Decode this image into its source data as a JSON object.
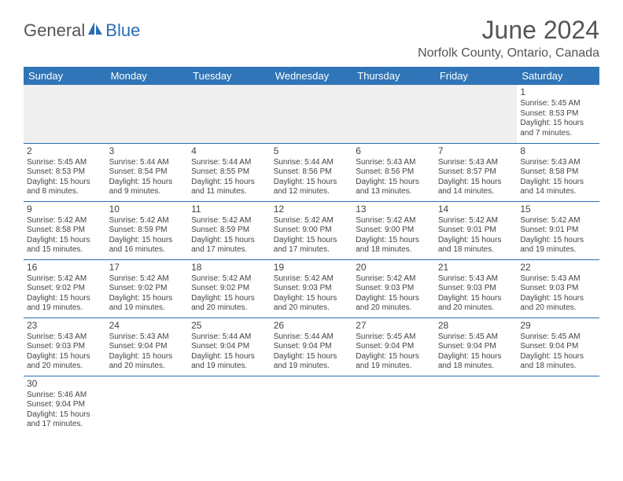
{
  "logo": {
    "text_general": "General",
    "text_blue": "Blue"
  },
  "title": "June 2024",
  "location": "Norfolk County, Ontario, Canada",
  "colors": {
    "header_bg": "#3075b7",
    "header_text": "#ffffff",
    "border": "#2a6db3",
    "shaded_bg": "#efefef",
    "text": "#444444"
  },
  "weekdays": [
    "Sunday",
    "Monday",
    "Tuesday",
    "Wednesday",
    "Thursday",
    "Friday",
    "Saturday"
  ],
  "weeks": [
    [
      null,
      null,
      null,
      null,
      null,
      null,
      {
        "n": "1",
        "sr": "Sunrise: 5:45 AM",
        "ss": "Sunset: 8:53 PM",
        "dl": "Daylight: 15 hours and 7 minutes."
      }
    ],
    [
      {
        "n": "2",
        "sr": "Sunrise: 5:45 AM",
        "ss": "Sunset: 8:53 PM",
        "dl": "Daylight: 15 hours and 8 minutes."
      },
      {
        "n": "3",
        "sr": "Sunrise: 5:44 AM",
        "ss": "Sunset: 8:54 PM",
        "dl": "Daylight: 15 hours and 9 minutes."
      },
      {
        "n": "4",
        "sr": "Sunrise: 5:44 AM",
        "ss": "Sunset: 8:55 PM",
        "dl": "Daylight: 15 hours and 11 minutes."
      },
      {
        "n": "5",
        "sr": "Sunrise: 5:44 AM",
        "ss": "Sunset: 8:56 PM",
        "dl": "Daylight: 15 hours and 12 minutes."
      },
      {
        "n": "6",
        "sr": "Sunrise: 5:43 AM",
        "ss": "Sunset: 8:56 PM",
        "dl": "Daylight: 15 hours and 13 minutes."
      },
      {
        "n": "7",
        "sr": "Sunrise: 5:43 AM",
        "ss": "Sunset: 8:57 PM",
        "dl": "Daylight: 15 hours and 14 minutes."
      },
      {
        "n": "8",
        "sr": "Sunrise: 5:43 AM",
        "ss": "Sunset: 8:58 PM",
        "dl": "Daylight: 15 hours and 14 minutes."
      }
    ],
    [
      {
        "n": "9",
        "sr": "Sunrise: 5:42 AM",
        "ss": "Sunset: 8:58 PM",
        "dl": "Daylight: 15 hours and 15 minutes."
      },
      {
        "n": "10",
        "sr": "Sunrise: 5:42 AM",
        "ss": "Sunset: 8:59 PM",
        "dl": "Daylight: 15 hours and 16 minutes."
      },
      {
        "n": "11",
        "sr": "Sunrise: 5:42 AM",
        "ss": "Sunset: 8:59 PM",
        "dl": "Daylight: 15 hours and 17 minutes."
      },
      {
        "n": "12",
        "sr": "Sunrise: 5:42 AM",
        "ss": "Sunset: 9:00 PM",
        "dl": "Daylight: 15 hours and 17 minutes."
      },
      {
        "n": "13",
        "sr": "Sunrise: 5:42 AM",
        "ss": "Sunset: 9:00 PM",
        "dl": "Daylight: 15 hours and 18 minutes."
      },
      {
        "n": "14",
        "sr": "Sunrise: 5:42 AM",
        "ss": "Sunset: 9:01 PM",
        "dl": "Daylight: 15 hours and 18 minutes."
      },
      {
        "n": "15",
        "sr": "Sunrise: 5:42 AM",
        "ss": "Sunset: 9:01 PM",
        "dl": "Daylight: 15 hours and 19 minutes."
      }
    ],
    [
      {
        "n": "16",
        "sr": "Sunrise: 5:42 AM",
        "ss": "Sunset: 9:02 PM",
        "dl": "Daylight: 15 hours and 19 minutes."
      },
      {
        "n": "17",
        "sr": "Sunrise: 5:42 AM",
        "ss": "Sunset: 9:02 PM",
        "dl": "Daylight: 15 hours and 19 minutes."
      },
      {
        "n": "18",
        "sr": "Sunrise: 5:42 AM",
        "ss": "Sunset: 9:02 PM",
        "dl": "Daylight: 15 hours and 20 minutes."
      },
      {
        "n": "19",
        "sr": "Sunrise: 5:42 AM",
        "ss": "Sunset: 9:03 PM",
        "dl": "Daylight: 15 hours and 20 minutes."
      },
      {
        "n": "20",
        "sr": "Sunrise: 5:42 AM",
        "ss": "Sunset: 9:03 PM",
        "dl": "Daylight: 15 hours and 20 minutes."
      },
      {
        "n": "21",
        "sr": "Sunrise: 5:43 AM",
        "ss": "Sunset: 9:03 PM",
        "dl": "Daylight: 15 hours and 20 minutes."
      },
      {
        "n": "22",
        "sr": "Sunrise: 5:43 AM",
        "ss": "Sunset: 9:03 PM",
        "dl": "Daylight: 15 hours and 20 minutes."
      }
    ],
    [
      {
        "n": "23",
        "sr": "Sunrise: 5:43 AM",
        "ss": "Sunset: 9:03 PM",
        "dl": "Daylight: 15 hours and 20 minutes."
      },
      {
        "n": "24",
        "sr": "Sunrise: 5:43 AM",
        "ss": "Sunset: 9:04 PM",
        "dl": "Daylight: 15 hours and 20 minutes."
      },
      {
        "n": "25",
        "sr": "Sunrise: 5:44 AM",
        "ss": "Sunset: 9:04 PM",
        "dl": "Daylight: 15 hours and 19 minutes."
      },
      {
        "n": "26",
        "sr": "Sunrise: 5:44 AM",
        "ss": "Sunset: 9:04 PM",
        "dl": "Daylight: 15 hours and 19 minutes."
      },
      {
        "n": "27",
        "sr": "Sunrise: 5:45 AM",
        "ss": "Sunset: 9:04 PM",
        "dl": "Daylight: 15 hours and 19 minutes."
      },
      {
        "n": "28",
        "sr": "Sunrise: 5:45 AM",
        "ss": "Sunset: 9:04 PM",
        "dl": "Daylight: 15 hours and 18 minutes."
      },
      {
        "n": "29",
        "sr": "Sunrise: 5:45 AM",
        "ss": "Sunset: 9:04 PM",
        "dl": "Daylight: 15 hours and 18 minutes."
      }
    ],
    [
      {
        "n": "30",
        "sr": "Sunrise: 5:46 AM",
        "ss": "Sunset: 9:04 PM",
        "dl": "Daylight: 15 hours and 17 minutes."
      },
      null,
      null,
      null,
      null,
      null,
      null
    ]
  ]
}
